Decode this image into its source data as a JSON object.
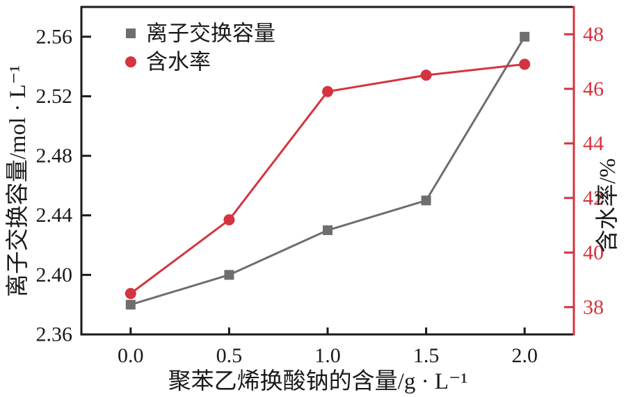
{
  "chart_data": {
    "type": "line",
    "title": "",
    "x": [
      0.0,
      0.5,
      1.0,
      1.5,
      2.0
    ],
    "x_tick_labels": [
      "0.0",
      "0.5",
      "1.0",
      "1.5",
      "2.0"
    ],
    "xlabel": "聚苯乙烯换酸钠的含量/g · L⁻¹",
    "xlim": [
      -0.25,
      2.25
    ],
    "grid": false,
    "left_axis": {
      "label": "离子交换容量/mol · L⁻¹",
      "lim": [
        2.36,
        2.58
      ],
      "ticks": [
        2.36,
        2.4,
        2.44,
        2.48,
        2.52,
        2.56
      ],
      "tick_decimals": 2,
      "color": "#1a1a1a",
      "label_color": "#1a1a1a"
    },
    "right_axis": {
      "label": "含水率/%",
      "lim": [
        37,
        49
      ],
      "ticks": [
        38,
        40,
        42,
        44,
        46,
        48
      ],
      "tick_decimals": 0,
      "color": "#d5333f",
      "label_color": "#1a1a1a"
    },
    "series": [
      {
        "name": "离子交换容量",
        "axis": "left",
        "marker": "square",
        "color": "#6e6e6e",
        "values": [
          2.38,
          2.4,
          2.43,
          2.45,
          2.56
        ]
      },
      {
        "name": "含水率",
        "axis": "right",
        "marker": "circle",
        "color": "#d5333f",
        "values": [
          38.5,
          41.2,
          45.9,
          46.5,
          46.9
        ]
      }
    ],
    "legend": {
      "position": "top-left",
      "items": [
        {
          "label": "离子交换容量",
          "marker": "square",
          "color": "#6e6e6e"
        },
        {
          "label": "含水率",
          "marker": "circle",
          "color": "#d5333f"
        }
      ]
    }
  }
}
